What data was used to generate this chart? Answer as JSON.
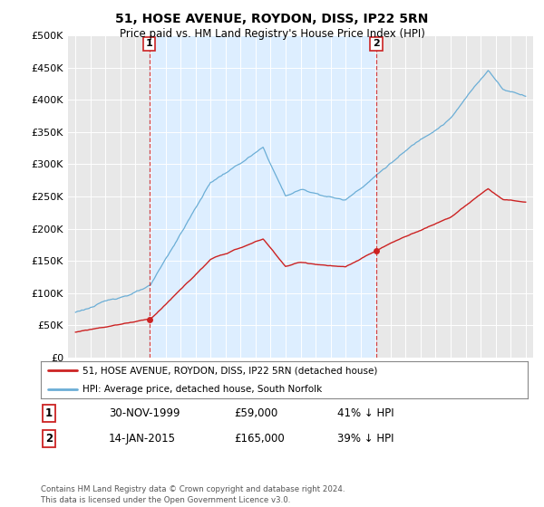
{
  "title": "51, HOSE AVENUE, ROYDON, DISS, IP22 5RN",
  "subtitle": "Price paid vs. HM Land Registry's House Price Index (HPI)",
  "sale1_label": "30-NOV-1999",
  "sale1_price": 59000,
  "sale1_pct": "41% ↓ HPI",
  "sale2_label": "14-JAN-2015",
  "sale2_price": 165000,
  "sale2_pct": "39% ↓ HPI",
  "sale1_x": 1999.92,
  "sale2_x": 2015.04,
  "hpi_color": "#6baed6",
  "price_color": "#cc2222",
  "vline_color": "#cc2222",
  "shade_color": "#ddeeff",
  "legend_label1": "51, HOSE AVENUE, ROYDON, DISS, IP22 5RN (detached house)",
  "legend_label2": "HPI: Average price, detached house, South Norfolk",
  "footer": "Contains HM Land Registry data © Crown copyright and database right 2024.\nThis data is licensed under the Open Government Licence v3.0.",
  "ylim": [
    0,
    500000
  ],
  "yticks": [
    0,
    50000,
    100000,
    150000,
    200000,
    250000,
    300000,
    350000,
    400000,
    450000,
    500000
  ],
  "xlim": [
    1994.5,
    2025.5
  ],
  "background": "#e8e8e8",
  "title_fontsize": 10,
  "subtitle_fontsize": 8.5
}
